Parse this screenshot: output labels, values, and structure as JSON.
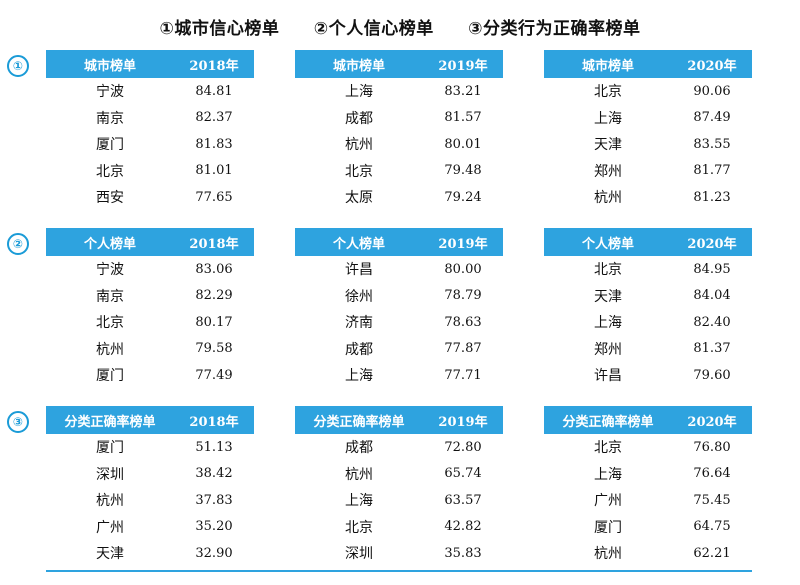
{
  "titles": [
    "①城市信心榜单",
    "②个人信心榜单",
    "③分类行为正确率榜单"
  ],
  "sections": [
    {
      "marker": "①",
      "tables": [
        {
          "name_header": "城市榜单",
          "year": "2018年",
          "rows": [
            [
              "宁波",
              "84.81"
            ],
            [
              "南京",
              "82.37"
            ],
            [
              "厦门",
              "81.83"
            ],
            [
              "北京",
              "81.01"
            ],
            [
              "西安",
              "77.65"
            ]
          ]
        },
        {
          "name_header": "城市榜单",
          "year": "2019年",
          "rows": [
            [
              "上海",
              "83.21"
            ],
            [
              "成都",
              "81.57"
            ],
            [
              "杭州",
              "80.01"
            ],
            [
              "北京",
              "79.48"
            ],
            [
              "太原",
              "79.24"
            ]
          ]
        },
        {
          "name_header": "城市榜单",
          "year": "2020年",
          "rows": [
            [
              "北京",
              "90.06"
            ],
            [
              "上海",
              "87.49"
            ],
            [
              "天津",
              "83.55"
            ],
            [
              "郑州",
              "81.77"
            ],
            [
              "杭州",
              "81.23"
            ]
          ]
        }
      ]
    },
    {
      "marker": "②",
      "tables": [
        {
          "name_header": "个人榜单",
          "year": "2018年",
          "rows": [
            [
              "宁波",
              "83.06"
            ],
            [
              "南京",
              "82.29"
            ],
            [
              "北京",
              "80.17"
            ],
            [
              "杭州",
              "79.58"
            ],
            [
              "厦门",
              "77.49"
            ]
          ]
        },
        {
          "name_header": "个人榜单",
          "year": "2019年",
          "rows": [
            [
              "许昌",
              "80.00"
            ],
            [
              "徐州",
              "78.79"
            ],
            [
              "济南",
              "78.63"
            ],
            [
              "成都",
              "77.87"
            ],
            [
              "上海",
              "77.71"
            ]
          ]
        },
        {
          "name_header": "个人榜单",
          "year": "2020年",
          "rows": [
            [
              "北京",
              "84.95"
            ],
            [
              "天津",
              "84.04"
            ],
            [
              "上海",
              "82.40"
            ],
            [
              "郑州",
              "81.37"
            ],
            [
              "许昌",
              "79.60"
            ]
          ]
        }
      ]
    },
    {
      "marker": "③",
      "tables": [
        {
          "name_header": "分类正确率榜单",
          "year": "2018年",
          "rows": [
            [
              "厦门",
              "51.13"
            ],
            [
              "深圳",
              "38.42"
            ],
            [
              "杭州",
              "37.83"
            ],
            [
              "广州",
              "35.20"
            ],
            [
              "天津",
              "32.90"
            ]
          ]
        },
        {
          "name_header": "分类正确率榜单",
          "year": "2019年",
          "rows": [
            [
              "成都",
              "72.80"
            ],
            [
              "杭州",
              "65.74"
            ],
            [
              "上海",
              "63.57"
            ],
            [
              "北京",
              "42.82"
            ],
            [
              "深圳",
              "35.83"
            ]
          ]
        },
        {
          "name_header": "分类正确率榜单",
          "year": "2020年",
          "rows": [
            [
              "北京",
              "76.80"
            ],
            [
              "上海",
              "76.64"
            ],
            [
              "广州",
              "75.45"
            ],
            [
              "厦门",
              "64.75"
            ],
            [
              "杭州",
              "62.21"
            ]
          ]
        }
      ]
    }
  ],
  "colors": {
    "accent": "#2ea3df",
    "marker": "#1a9bd7"
  }
}
